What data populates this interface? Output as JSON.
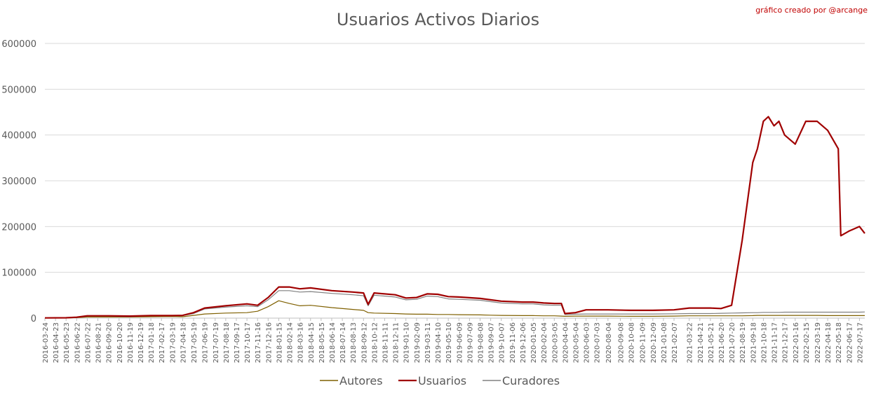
{
  "chart_data": {
    "type": "line",
    "title": "Usuarios Activos Diarios",
    "credit": "gráfico creado por @arcange",
    "xlabel": "",
    "ylabel": "",
    "ylim": [
      0,
      600000
    ],
    "y_ticks": [
      "0",
      "100000",
      "200000",
      "300000",
      "400000",
      "500000",
      "600000"
    ],
    "grid": true,
    "legend_position": "bottom",
    "x_tick_labels": [
      "2016-03-24",
      "2016-04-23",
      "2016-05-23",
      "2016-06-22",
      "2016-07-22",
      "2016-08-21",
      "2016-09-20",
      "2016-10-20",
      "2016-11-19",
      "2016-12-19",
      "2017-01-18",
      "2017-02-17",
      "2017-03-19",
      "2017-04-18",
      "2017-05-19",
      "2017-06-19",
      "2017-07-19",
      "2017-08-18",
      "2017-09-17",
      "2017-10-17",
      "2017-11-16",
      "2017-12-16",
      "2018-01-15",
      "2018-02-14",
      "2018-03-16",
      "2018-04-15",
      "2018-05-15",
      "2018-06-14",
      "2018-07-14",
      "2018-08-13",
      "2018-09-12",
      "2018-10-12",
      "2018-11-11",
      "2018-12-11",
      "2019-01-10",
      "2019-02-09",
      "2019-03-11",
      "2019-04-10",
      "2019-05-10",
      "2019-06-09",
      "2019-07-09",
      "2019-08-08",
      "2019-09-07",
      "2019-10-07",
      "2019-11-06",
      "2019-12-06",
      "2020-01-05",
      "2020-02-04",
      "2020-03-05",
      "2020-04-04",
      "2020-05-04",
      "2020-06-03",
      "2020-07-03",
      "2020-08-04",
      "2020-09-08",
      "2020-10-08",
      "2020-11-09",
      "2020-12-09",
      "2021-01-08",
      "2021-02-07",
      "2021-03-22",
      "2021-04-21",
      "2021-05-21",
      "2021-06-20",
      "2021-07-20",
      "2021-08-19",
      "2021-09-18",
      "2021-10-18",
      "2021-11-17",
      "2021-12-17",
      "2022-01-16",
      "2022-02-15",
      "2022-03-19",
      "2022-04-18",
      "2022-05-18",
      "2022-06-17",
      "2022-07-17"
    ],
    "x": [
      "2016-03-24",
      "2016-05-23",
      "2016-06-22",
      "2016-07-22",
      "2016-09-20",
      "2016-11-19",
      "2017-01-18",
      "2017-03-19",
      "2017-04-18",
      "2017-05-19",
      "2017-06-19",
      "2017-08-18",
      "2017-10-17",
      "2017-11-16",
      "2017-12-16",
      "2018-01-15",
      "2018-02-14",
      "2018-03-16",
      "2018-04-15",
      "2018-06-14",
      "2018-08-13",
      "2018-09-12",
      "2018-09-25",
      "2018-10-12",
      "2018-12-11",
      "2019-01-10",
      "2019-02-09",
      "2019-03-11",
      "2019-04-10",
      "2019-05-10",
      "2019-06-09",
      "2019-08-08",
      "2019-09-07",
      "2019-10-07",
      "2019-12-06",
      "2020-01-05",
      "2020-02-04",
      "2020-03-05",
      "2020-03-25",
      "2020-04-04",
      "2020-05-04",
      "2020-06-03",
      "2020-07-03",
      "2020-08-04",
      "2020-10-08",
      "2020-12-09",
      "2021-02-07",
      "2021-03-22",
      "2021-05-21",
      "2021-06-20",
      "2021-07-20",
      "2021-08-19",
      "2021-09-18",
      "2021-10-01",
      "2021-10-18",
      "2021-11-01",
      "2021-11-17",
      "2021-12-01",
      "2021-12-17",
      "2022-01-16",
      "2022-02-15",
      "2022-03-19",
      "2022-04-18",
      "2022-05-18",
      "2022-05-25",
      "2022-06-17",
      "2022-07-17",
      "2022-08-01"
    ],
    "series": [
      {
        "name": "Autores",
        "color": "#7f6000",
        "values": [
          200,
          300,
          1000,
          2500,
          2500,
          2500,
          3000,
          3500,
          3000,
          6000,
          9000,
          11000,
          12000,
          15000,
          25000,
          38000,
          32000,
          27000,
          28000,
          23000,
          19000,
          17000,
          12000,
          11000,
          10000,
          9000,
          8500,
          8500,
          8000,
          8000,
          7500,
          7000,
          6500,
          6000,
          5500,
          5500,
          5000,
          5000,
          4500,
          4000,
          4500,
          4500,
          4500,
          4500,
          4000,
          4000,
          4500,
          5000,
          5000,
          5000,
          5000,
          5000,
          5500,
          6000,
          6000,
          6000,
          6000,
          6000,
          6000,
          6000,
          6000,
          6000,
          5500,
          5500,
          5500,
          5500,
          5500,
          5500
        ]
      },
      {
        "name": "Usuarios",
        "color": "#a00000",
        "values": [
          500,
          800,
          2000,
          5000,
          5000,
          4500,
          5500,
          5500,
          6000,
          12000,
          22000,
          27000,
          31000,
          28000,
          45000,
          68000,
          68000,
          64000,
          66000,
          60000,
          57000,
          55000,
          30000,
          55000,
          51000,
          44000,
          45000,
          53000,
          52000,
          47000,
          46000,
          43000,
          40000,
          37000,
          35000,
          35000,
          33000,
          32000,
          32000,
          10000,
          12000,
          18000,
          18000,
          18000,
          17000,
          17000,
          18000,
          22000,
          22000,
          21000,
          28000,
          170000,
          340000,
          370000,
          430000,
          440000,
          420000,
          430000,
          400000,
          380000,
          430000,
          430000,
          410000,
          370000,
          180000,
          190000,
          200000,
          185000
        ]
      },
      {
        "name": "Curadores",
        "color": "#808080",
        "values": [
          400,
          700,
          1800,
          4500,
          4500,
          4000,
          5000,
          5000,
          5500,
          10000,
          20000,
          24000,
          27000,
          25000,
          40000,
          60000,
          60000,
          57000,
          58000,
          54000,
          51000,
          49000,
          27000,
          50000,
          46000,
          40000,
          41000,
          48000,
          47000,
          42000,
          41000,
          39000,
          36000,
          33000,
          31000,
          31000,
          29000,
          28000,
          28000,
          8000,
          8500,
          9000,
          9000,
          9000,
          9000,
          9000,
          9500,
          10000,
          10000,
          10500,
          11000,
          11500,
          12000,
          12000,
          12500,
          12500,
          12500,
          12500,
          13000,
          13000,
          13000,
          13000,
          13000,
          13000,
          13000,
          13000,
          13000,
          13500
        ]
      }
    ]
  }
}
